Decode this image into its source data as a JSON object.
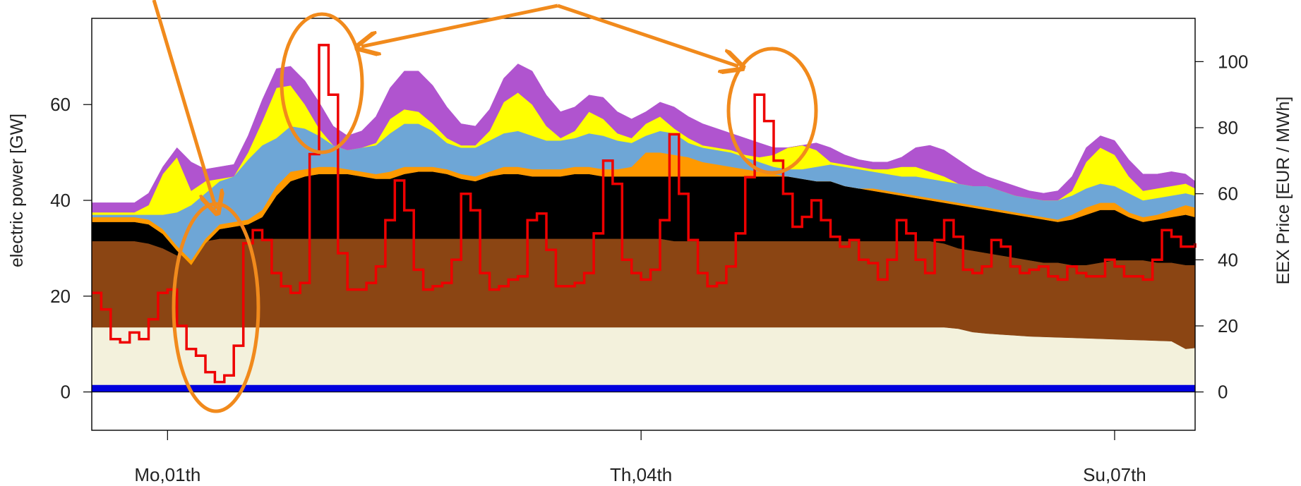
{
  "chart_data": {
    "type": "area",
    "title": "",
    "xlabel": "",
    "ylabel": "electric power [GW]",
    "y2label": "EEX Price [EUR / MWh]",
    "xlim": [
      -1.6,
      21.7
    ],
    "ylim": [
      -8,
      78
    ],
    "y2lim": [
      -11.6,
      113.1
    ],
    "yticks": [
      0,
      20,
      40,
      60
    ],
    "y2ticks": [
      0,
      20,
      40,
      60,
      80,
      100
    ],
    "x_ticks": [
      {
        "x": 0,
        "label": "Mo,01th"
      },
      {
        "x": 10,
        "label": "Th,04th"
      },
      {
        "x": 20,
        "label": "Su,07th"
      }
    ],
    "grid": false,
    "x": [
      -1.6,
      -1.3,
      -1.0,
      -0.7,
      -0.4,
      -0.1,
      0.2,
      0.5,
      0.8,
      1.1,
      1.4,
      1.7,
      2.0,
      2.3,
      2.6,
      2.9,
      3.2,
      3.5,
      3.8,
      4.1,
      4.4,
      4.7,
      5.0,
      5.3,
      5.6,
      5.9,
      6.2,
      6.5,
      6.8,
      7.1,
      7.4,
      7.7,
      8.0,
      8.3,
      8.6,
      8.9,
      9.2,
      9.5,
      9.8,
      10.1,
      10.4,
      10.7,
      11.0,
      11.3,
      11.6,
      11.9,
      12.2,
      12.5,
      12.8,
      13.1,
      13.4,
      13.7,
      14.0,
      14.3,
      14.6,
      14.9,
      15.2,
      15.5,
      15.8,
      16.1,
      16.4,
      16.7,
      17.0,
      17.3,
      17.6,
      17.9,
      18.2,
      18.5,
      18.8,
      19.1,
      19.4,
      19.7,
      20.0,
      20.3,
      20.6,
      20.9,
      21.2,
      21.5,
      21.7
    ],
    "series": [
      {
        "color": "#0000dd",
        "values": [
          1.5,
          1.5,
          1.5,
          1.5,
          1.5,
          1.5,
          1.5,
          1.5,
          1.5,
          1.5,
          1.5,
          1.5,
          1.5,
          1.5,
          1.5,
          1.5,
          1.5,
          1.5,
          1.5,
          1.5,
          1.5,
          1.5,
          1.5,
          1.5,
          1.5,
          1.5,
          1.5,
          1.5,
          1.5,
          1.5,
          1.5,
          1.5,
          1.5,
          1.5,
          1.5,
          1.5,
          1.5,
          1.5,
          1.5,
          1.5,
          1.5,
          1.5,
          1.5,
          1.5,
          1.5,
          1.5,
          1.5,
          1.5,
          1.5,
          1.5,
          1.5,
          1.5,
          1.5,
          1.5,
          1.5,
          1.5,
          1.5,
          1.5,
          1.5,
          1.5,
          1.5,
          1.5,
          1.5,
          1.5,
          1.5,
          1.5,
          1.5,
          1.5,
          1.5,
          1.5,
          1.5,
          1.5,
          1.5,
          1.5,
          1.5,
          1.5,
          1.5,
          1.5,
          1.5
        ]
      },
      {
        "color": "#f3f1dc",
        "values": [
          13.5,
          13.5,
          13.5,
          13.5,
          13.5,
          13.5,
          13.5,
          13.5,
          13.5,
          13.5,
          13.5,
          13.5,
          13.5,
          13.5,
          13.5,
          13.5,
          13.5,
          13.5,
          13.5,
          13.5,
          13.5,
          13.5,
          13.5,
          13.5,
          13.5,
          13.5,
          13.5,
          13.5,
          13.5,
          13.5,
          13.5,
          13.5,
          13.5,
          13.5,
          13.5,
          13.5,
          13.5,
          13.5,
          13.5,
          13.5,
          13.5,
          13.5,
          13.5,
          13.5,
          13.5,
          13.5,
          13.5,
          13.5,
          13.5,
          13.5,
          13.5,
          13.5,
          13.5,
          13.5,
          13.5,
          13.5,
          13.5,
          13.5,
          13.5,
          13.5,
          13.5,
          13.2,
          12.5,
          12.2,
          12.0,
          11.8,
          11.6,
          11.5,
          11.4,
          11.3,
          11.2,
          11.1,
          11.0,
          10.9,
          10.8,
          10.7,
          10.6,
          9.0,
          9.2
        ]
      },
      {
        "color": "#8b4513",
        "values": [
          31.5,
          31.5,
          31.5,
          31.5,
          31.0,
          30.0,
          28.5,
          29.5,
          31.5,
          32.0,
          32.0,
          32.0,
          32.0,
          32.0,
          32.0,
          32.0,
          32.0,
          32.0,
          32.0,
          32.0,
          32.0,
          32.0,
          32.0,
          32.0,
          32.0,
          32.0,
          32.0,
          32.0,
          32.0,
          32.0,
          32.0,
          32.0,
          32.0,
          32.0,
          32.0,
          32.0,
          32.0,
          32.0,
          32.0,
          32.0,
          32.0,
          31.5,
          31.5,
          31.5,
          31.5,
          31.5,
          31.5,
          31.5,
          31.5,
          31.5,
          31.5,
          31.5,
          31.5,
          31.5,
          31.5,
          31.5,
          31.5,
          31.5,
          31.5,
          31.5,
          31.0,
          30.0,
          29.5,
          29.0,
          28.5,
          28.0,
          27.5,
          27.0,
          27.0,
          26.5,
          26.5,
          27.0,
          27.5,
          27.5,
          27.5,
          27.0,
          27.0,
          26.5,
          26.5
        ]
      },
      {
        "color": "#000000",
        "values": [
          35.5,
          35.5,
          35.5,
          35.5,
          35.0,
          33.0,
          29.5,
          26.5,
          31.0,
          34.0,
          34.5,
          35.0,
          36.5,
          41.0,
          44.0,
          45.0,
          45.5,
          45.5,
          45.5,
          45.0,
          44.5,
          44.5,
          45.5,
          46.0,
          46.0,
          45.5,
          44.5,
          44.0,
          45.0,
          45.5,
          45.5,
          45.0,
          45.0,
          45.0,
          45.5,
          45.5,
          45.0,
          45.0,
          45.0,
          45.0,
          45.0,
          45.0,
          45.0,
          45.0,
          45.0,
          45.0,
          45.0,
          45.0,
          45.0,
          45.0,
          45.0,
          44.0,
          44.0,
          43.0,
          42.5,
          42.0,
          41.5,
          41.0,
          40.5,
          40.0,
          39.5,
          39.0,
          38.5,
          38.0,
          37.5,
          37.0,
          36.5,
          36.0,
          35.5,
          36.0,
          37.0,
          38.0,
          38.0,
          36.5,
          35.5,
          36.0,
          36.5,
          37.0,
          36.5
        ]
      },
      {
        "color": "#ff9900",
        "values": [
          36.5,
          36.5,
          36.5,
          36.5,
          36.0,
          34.0,
          30.5,
          27.5,
          32.0,
          35.0,
          35.5,
          36.0,
          38.0,
          43.0,
          46.0,
          46.5,
          47.0,
          47.0,
          46.5,
          46.0,
          45.5,
          46.0,
          47.0,
          47.0,
          47.0,
          46.5,
          45.5,
          45.0,
          46.0,
          47.0,
          47.0,
          46.5,
          46.5,
          46.5,
          47.0,
          47.0,
          46.5,
          46.5,
          47.0,
          50.0,
          50.0,
          49.5,
          49.0,
          48.0,
          47.5,
          47.0,
          46.5,
          46.0,
          45.5,
          45.0,
          44.5,
          44.0,
          44.0,
          43.0,
          42.5,
          42.5,
          42.0,
          41.5,
          41.0,
          40.5,
          40.0,
          39.5,
          39.0,
          38.5,
          38.0,
          37.5,
          37.0,
          36.5,
          36.0,
          37.0,
          38.5,
          39.5,
          39.5,
          37.5,
          36.5,
          37.0,
          38.0,
          39.0,
          38.5
        ]
      },
      {
        "color": "#6ea6d6",
        "values": [
          37.0,
          37.0,
          37.0,
          37.0,
          37.0,
          37.0,
          37.5,
          39.0,
          41.5,
          44.0,
          45.0,
          48.5,
          51.5,
          53.0,
          55.5,
          55.0,
          53.5,
          51.5,
          50.5,
          51.0,
          51.5,
          54.0,
          56.0,
          56.0,
          54.5,
          52.0,
          51.0,
          51.0,
          52.5,
          54.0,
          54.5,
          53.5,
          52.5,
          52.5,
          53.0,
          54.0,
          53.5,
          52.5,
          52.0,
          53.5,
          54.5,
          54.0,
          52.0,
          51.0,
          50.5,
          50.0,
          49.0,
          48.0,
          47.0,
          46.5,
          46.5,
          47.0,
          47.5,
          47.0,
          46.5,
          46.0,
          45.5,
          45.0,
          45.0,
          44.5,
          44.0,
          43.5,
          43.0,
          43.0,
          42.0,
          41.0,
          40.5,
          40.0,
          40.0,
          41.0,
          42.5,
          43.5,
          43.0,
          41.5,
          40.0,
          40.5,
          41.0,
          41.5,
          41.0
        ]
      },
      {
        "color": "#ffff00",
        "values": [
          37.5,
          37.5,
          37.5,
          37.5,
          39.0,
          45.5,
          49.0,
          42.0,
          44.0,
          44.5,
          45.0,
          50.0,
          56.5,
          63.5,
          64.0,
          60.0,
          55.0,
          51.5,
          50.5,
          51.0,
          52.0,
          57.0,
          59.0,
          58.5,
          56.0,
          53.0,
          51.5,
          51.5,
          54.5,
          60.5,
          62.5,
          60.0,
          55.5,
          53.0,
          54.5,
          58.5,
          57.0,
          54.0,
          53.0,
          56.0,
          57.5,
          55.0,
          53.0,
          51.5,
          51.0,
          50.5,
          49.5,
          49.0,
          49.5,
          51.0,
          51.5,
          50.5,
          48.0,
          47.5,
          47.0,
          46.5,
          46.5,
          47.0,
          47.0,
          46.0,
          45.0,
          43.5,
          43.0,
          43.0,
          42.0,
          41.0,
          40.5,
          40.0,
          40.0,
          42.0,
          48.0,
          51.0,
          49.5,
          45.0,
          42.0,
          42.5,
          43.0,
          43.5,
          42.5
        ]
      },
      {
        "color": "#b054cf",
        "values": [
          39.5,
          39.5,
          39.5,
          39.5,
          41.5,
          47.0,
          51.0,
          48.0,
          46.5,
          47.0,
          47.5,
          53.5,
          61.0,
          67.5,
          68.0,
          65.0,
          60.5,
          55.5,
          53.5,
          54.5,
          57.5,
          63.5,
          67.0,
          67.0,
          64.0,
          59.5,
          56.0,
          55.5,
          59.0,
          65.5,
          68.5,
          67.0,
          62.0,
          58.5,
          59.5,
          62.0,
          61.5,
          58.5,
          57.0,
          58.5,
          60.5,
          59.5,
          57.5,
          56.0,
          55.0,
          54.0,
          53.0,
          52.0,
          51.0,
          51.0,
          51.5,
          52.0,
          51.0,
          49.5,
          48.5,
          48.0,
          48.0,
          49.0,
          51.0,
          51.5,
          50.5,
          48.5,
          46.5,
          45.0,
          44.0,
          43.0,
          42.0,
          41.5,
          42.0,
          45.0,
          51.0,
          53.5,
          52.5,
          48.5,
          45.5,
          45.5,
          46.0,
          45.5,
          44.0
        ]
      }
    ],
    "price_series": {
      "color": "#ee0000",
      "x": [
        -1.6,
        -1.4,
        -1.2,
        -1.0,
        -0.8,
        -0.6,
        -0.4,
        -0.2,
        0.0,
        0.2,
        0.4,
        0.6,
        0.8,
        1.0,
        1.2,
        1.4,
        1.6,
        1.8,
        2.0,
        2.2,
        2.4,
        2.6,
        2.8,
        3.0,
        3.2,
        3.4,
        3.6,
        3.8,
        4.0,
        4.2,
        4.4,
        4.6,
        4.8,
        5.0,
        5.2,
        5.4,
        5.6,
        5.8,
        6.0,
        6.2,
        6.4,
        6.6,
        6.8,
        7.0,
        7.2,
        7.4,
        7.6,
        7.8,
        8.0,
        8.2,
        8.4,
        8.6,
        8.8,
        9.0,
        9.2,
        9.4,
        9.6,
        9.8,
        10.0,
        10.2,
        10.4,
        10.6,
        10.8,
        11.0,
        11.2,
        11.4,
        11.6,
        11.8,
        12.0,
        12.2,
        12.4,
        12.6,
        12.8,
        13.0,
        13.2,
        13.4,
        13.6,
        13.8,
        14.0,
        14.2,
        14.4,
        14.6,
        14.8,
        15.0,
        15.2,
        15.4,
        15.6,
        15.8,
        16.0,
        16.2,
        16.4,
        16.6,
        16.8,
        17.0,
        17.2,
        17.4,
        17.6,
        17.8,
        18.0,
        18.2,
        18.4,
        18.6,
        18.8,
        19.0,
        19.2,
        19.4,
        19.6,
        19.8,
        20.0,
        20.2,
        20.4,
        20.6,
        20.8,
        21.0,
        21.2,
        21.4,
        21.7
      ],
      "values": [
        30,
        25,
        16,
        15,
        18,
        16,
        22,
        30,
        31,
        20,
        13,
        11,
        6,
        3,
        5,
        14,
        45,
        49,
        46,
        36,
        32,
        30,
        33,
        72,
        105,
        90,
        42,
        31,
        31,
        33,
        38,
        52,
        64,
        55,
        37,
        31,
        32,
        33,
        40,
        60,
        55,
        36,
        31,
        32,
        34,
        35,
        52,
        54,
        43,
        32,
        32,
        33,
        36,
        48,
        70,
        63,
        40,
        36,
        34,
        37,
        52,
        78,
        60,
        46,
        36,
        32,
        33,
        38,
        48,
        65,
        90,
        82,
        70,
        60,
        50,
        53,
        58,
        52,
        47,
        44,
        46,
        40,
        39,
        34,
        40,
        52,
        48,
        40,
        36,
        46,
        52,
        47,
        37,
        36,
        38,
        46,
        44,
        38,
        36,
        37,
        38,
        35,
        34,
        38,
        36,
        35,
        35,
        40,
        38,
        35,
        35,
        34,
        40,
        49,
        47,
        44,
        45
      ]
    },
    "annotation_color": "#f18a1c"
  }
}
